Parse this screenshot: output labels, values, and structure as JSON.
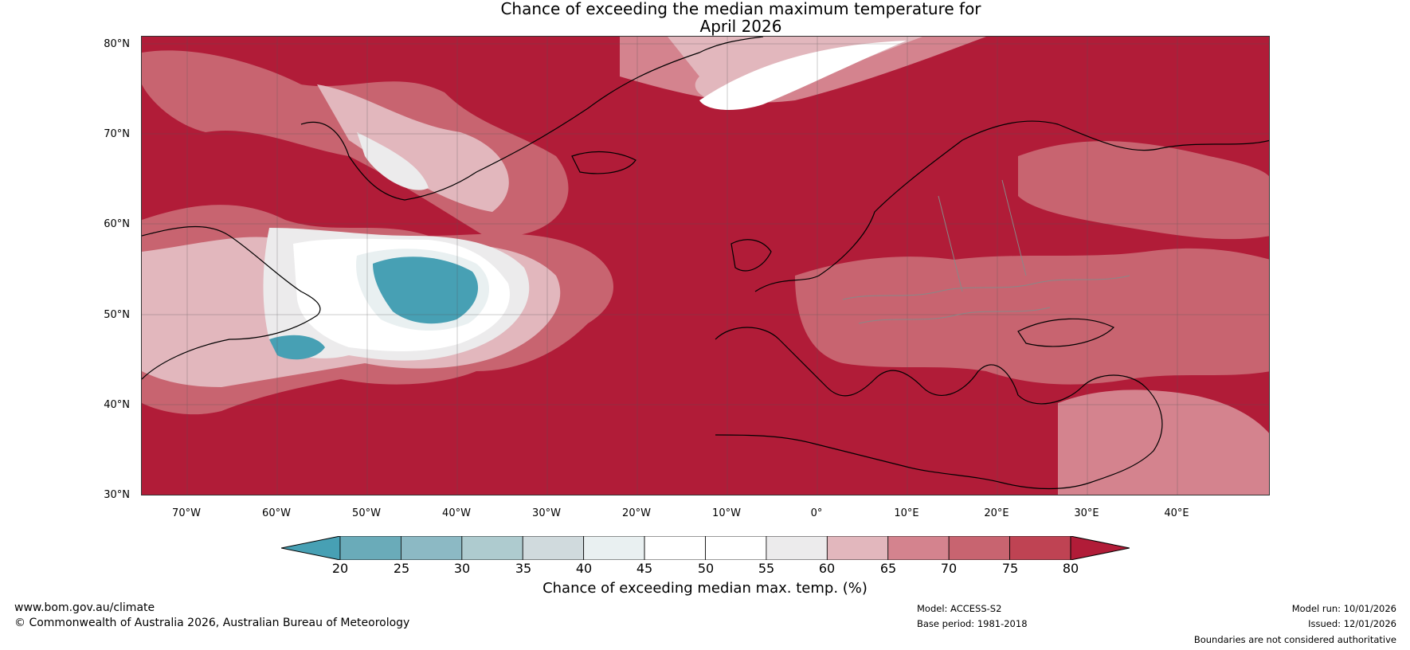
{
  "title": {
    "line1": "Chance of exceeding the median maximum temperature for",
    "line2": "April 2026"
  },
  "map": {
    "lat_labels": [
      "80°N",
      "70°N",
      "60°N",
      "50°N",
      "40°N",
      "30°N"
    ],
    "lon_labels": [
      "70°W",
      "60°W",
      "50°W",
      "40°W",
      "30°W",
      "20°W",
      "10°W",
      "0°",
      "10°E",
      "20°E",
      "30°E",
      "40°E"
    ],
    "lat_range": [
      30,
      81
    ],
    "lon_range": [
      -75,
      50
    ]
  },
  "colorbar": {
    "ticks": [
      "20",
      "25",
      "30",
      "35",
      "40",
      "45",
      "50",
      "55",
      "60",
      "65",
      "70",
      "75",
      "80"
    ],
    "colors": [
      "#47a0b4",
      "#6aabb9",
      "#8cb9c4",
      "#aecbcf",
      "#d0dadd",
      "#e9f0f1",
      "#ffffff",
      "#ffffff",
      "#ecebec",
      "#e2b7bd",
      "#d4838e",
      "#c86470",
      "#bf4353",
      "#b11c38"
    ],
    "label": "Chance of exceeding median max. temp. (%)"
  },
  "footer": {
    "website": "www.bom.gov.au/climate",
    "copyright": "© Commonwealth of Australia 2026, Australian Bureau of Meteorology",
    "model": "Model: ACCESS-S2",
    "base_period": "Base period: 1981-2018",
    "model_run": "Model run: 10/01/2026",
    "issued": "Issued: 12/01/2026",
    "disclaimer": "Boundaries are not considered authoritative"
  }
}
